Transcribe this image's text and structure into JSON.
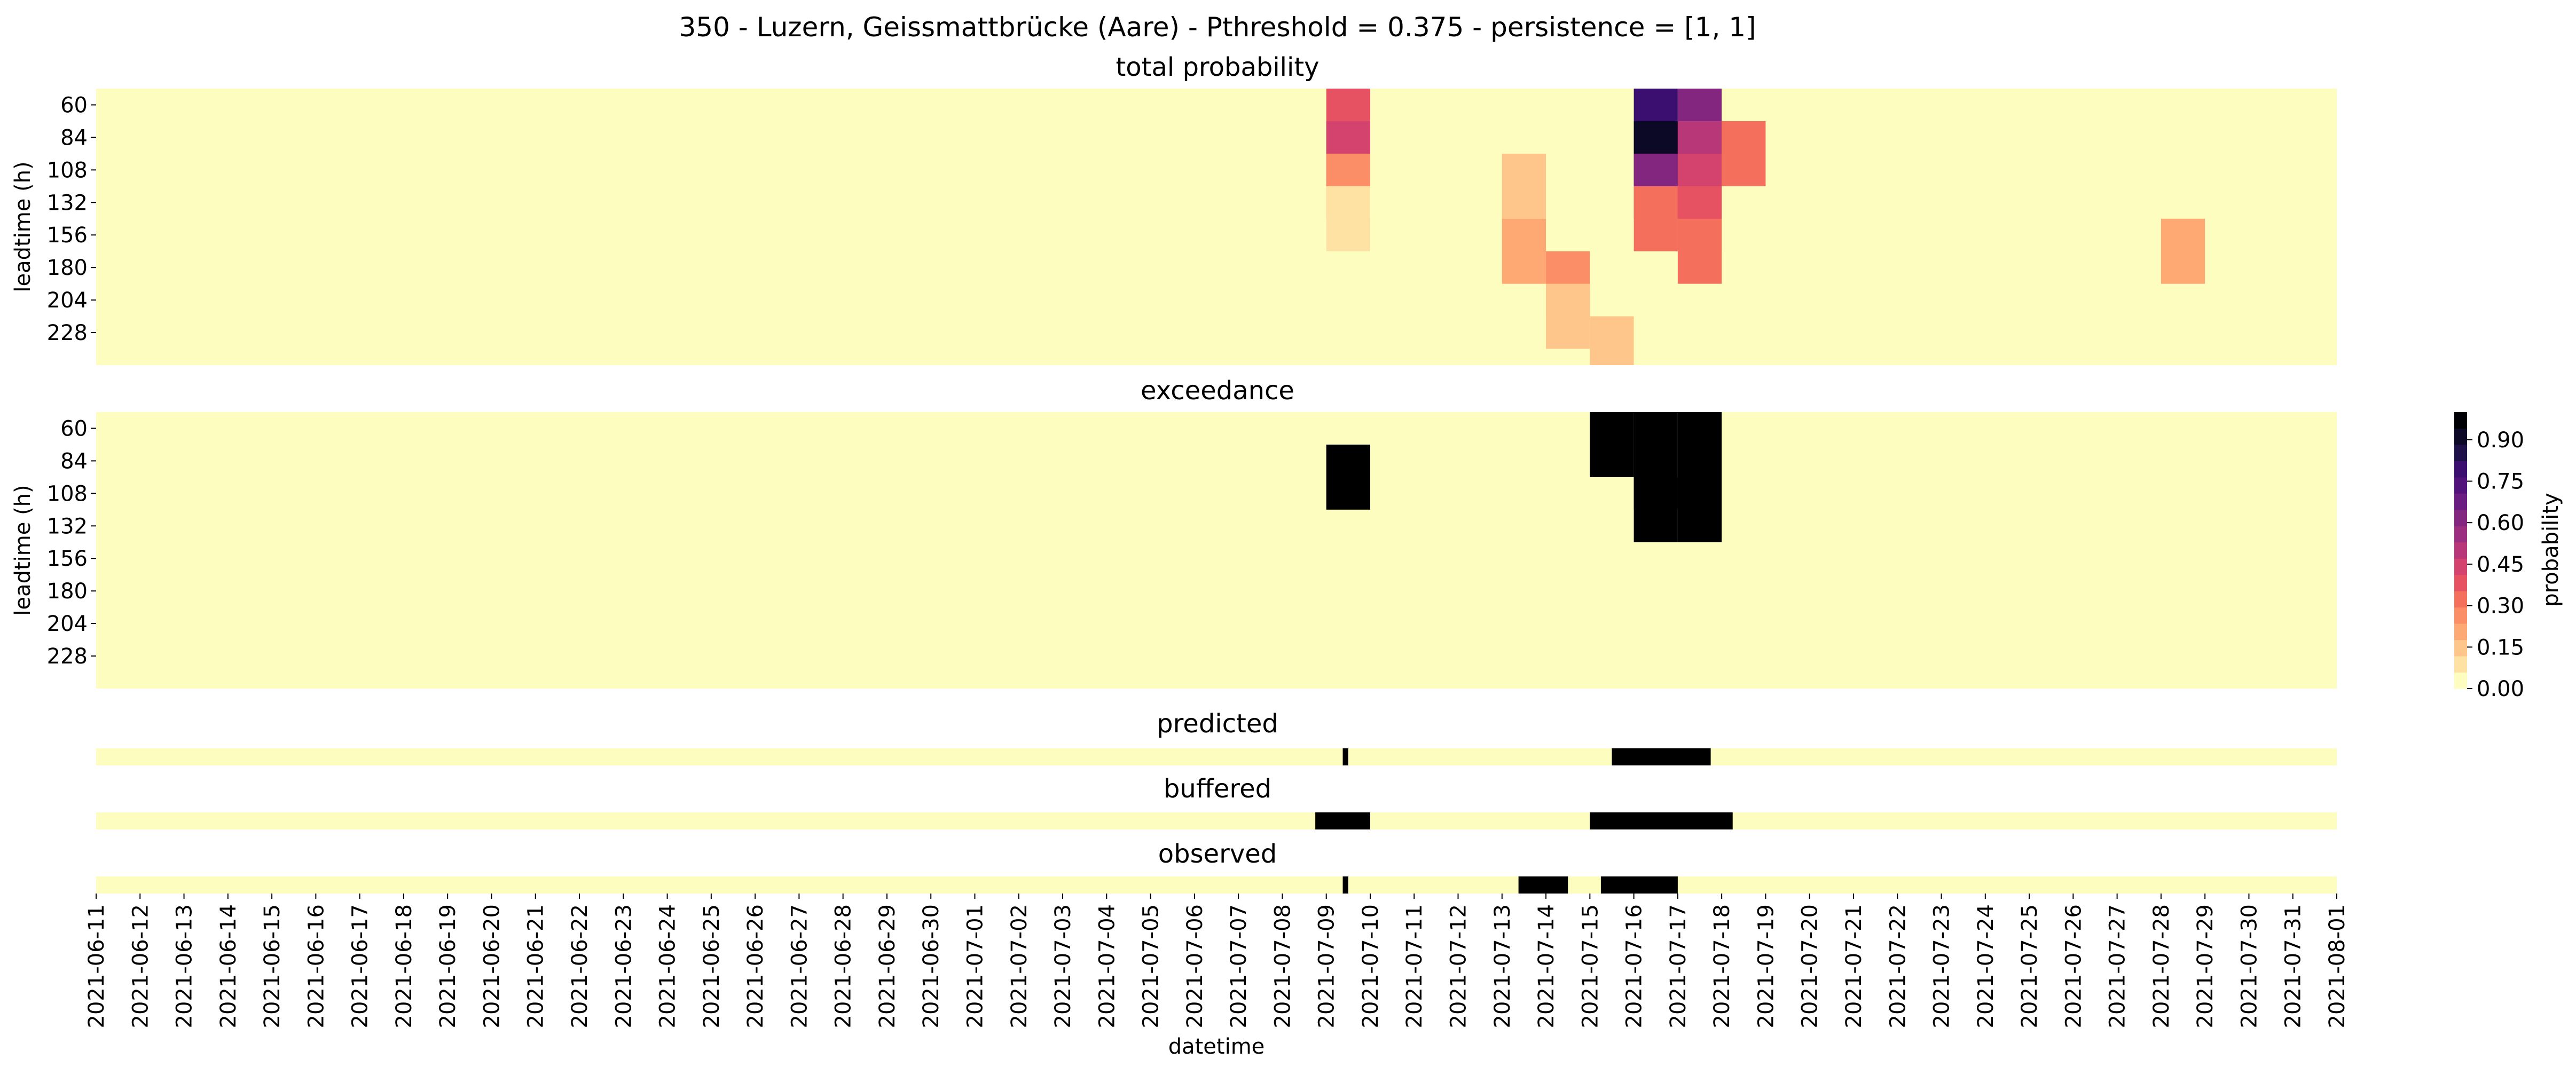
{
  "chart_data": {
    "type": "heatmap",
    "suptitle": "350 - Luzern, Geissmattbrücke (Aare) - Pthreshold = 0.375 - persistence = [1, 1]",
    "xlabel": "datetime",
    "x_start": "2021-06-11",
    "x_end": "2021-08-01",
    "x_tick_labels": [
      "2021-06-11",
      "2021-06-12",
      "2021-06-13",
      "2021-06-14",
      "2021-06-15",
      "2021-06-16",
      "2021-06-17",
      "2021-06-18",
      "2021-06-19",
      "2021-06-20",
      "2021-06-21",
      "2021-06-22",
      "2021-06-23",
      "2021-06-24",
      "2021-06-25",
      "2021-06-26",
      "2021-06-27",
      "2021-06-28",
      "2021-06-29",
      "2021-06-30",
      "2021-07-01",
      "2021-07-02",
      "2021-07-03",
      "2021-07-04",
      "2021-07-05",
      "2021-07-06",
      "2021-07-07",
      "2021-07-08",
      "2021-07-09",
      "2021-07-10",
      "2021-07-11",
      "2021-07-12",
      "2021-07-13",
      "2021-07-14",
      "2021-07-15",
      "2021-07-16",
      "2021-07-17",
      "2021-07-18",
      "2021-07-19",
      "2021-07-20",
      "2021-07-21",
      "2021-07-22",
      "2021-07-23",
      "2021-07-24",
      "2021-07-25",
      "2021-07-26",
      "2021-07-27",
      "2021-07-28",
      "2021-07-29",
      "2021-07-30",
      "2021-07-31",
      "2021-08-01"
    ],
    "leadtime_ylabel": "leadtime (h)",
    "leadtime_tick_labels": [
      "60",
      "84",
      "108",
      "132",
      "156",
      "180",
      "204",
      "228"
    ],
    "colorbar": {
      "label": "probability",
      "tick_labels": [
        "0.00",
        "0.15",
        "0.30",
        "0.45",
        "0.60",
        "0.75",
        "0.90"
      ],
      "levels": [
        0.0,
        0.05,
        0.1,
        0.15,
        0.2,
        0.25,
        0.3,
        0.35,
        0.4,
        0.45,
        0.5,
        0.55,
        0.6,
        0.65,
        0.7,
        0.75,
        0.8,
        0.85,
        0.9,
        0.95,
        1.0
      ],
      "colors": [
        "#fcfdbf",
        "#fde2a3",
        "#fec68a",
        "#fea973",
        "#fb8d67",
        "#f4705c",
        "#e75263",
        "#d3436e",
        "#b73779",
        "#9c2e7f",
        "#82267f",
        "#6a1c81",
        "#51127c",
        "#3b0f70",
        "#1e1048",
        "#0c0927",
        "#000004"
      ]
    },
    "panels": [
      {
        "title": "total probability",
        "kind": "probability",
        "cells": [
          {
            "day": "2021-07-09",
            "leadtime_band": [
              "60",
              "84"
            ],
            "p": 0.35
          },
          {
            "day": "2021-07-09",
            "leadtime_band": [
              "84",
              "108"
            ],
            "p": 0.4
          },
          {
            "day": "2021-07-09",
            "leadtime_band": [
              "108",
              "132"
            ],
            "p": 0.25
          },
          {
            "day": "2021-07-09",
            "leadtime_band": [
              "132",
              "156"
            ],
            "p": 0.05
          },
          {
            "day": "2021-07-13",
            "leadtime_band": [
              "108",
              "132"
            ],
            "p": 0.1
          },
          {
            "day": "2021-07-13",
            "leadtime_band": [
              "156",
              "180"
            ],
            "p": 0.15
          },
          {
            "day": "2021-07-14",
            "leadtime_band": [
              "180",
              "204"
            ],
            "p": 0.25
          },
          {
            "day": "2021-07-14",
            "leadtime_band": [
              "204",
              "228"
            ],
            "p": 0.1
          },
          {
            "day": "2021-07-15",
            "leadtime_band": [
              "228",
              "240"
            ],
            "p": 0.1
          },
          {
            "day": "2021-07-16",
            "leadtime_band": [
              "60",
              "84"
            ],
            "p": 0.75
          },
          {
            "day": "2021-07-16",
            "leadtime_band": [
              "84",
              "108"
            ],
            "p": 0.9
          },
          {
            "day": "2021-07-16",
            "leadtime_band": [
              "108",
              "132"
            ],
            "p": 0.6
          },
          {
            "day": "2021-07-16",
            "leadtime_band": [
              "132",
              "156"
            ],
            "p": 0.3
          },
          {
            "day": "2021-07-17",
            "leadtime_band": [
              "60",
              "84"
            ],
            "p": 0.6
          },
          {
            "day": "2021-07-17",
            "leadtime_band": [
              "84",
              "108"
            ],
            "p": 0.5
          },
          {
            "day": "2021-07-17",
            "leadtime_band": [
              "108",
              "132"
            ],
            "p": 0.4
          },
          {
            "day": "2021-07-17",
            "leadtime_band": [
              "132",
              "156"
            ],
            "p": 0.35
          },
          {
            "day": "2021-07-17",
            "leadtime_band": [
              "156",
              "180"
            ],
            "p": 0.3
          },
          {
            "day": "2021-07-18",
            "leadtime_band": [
              "84",
              "108"
            ],
            "p": 0.3
          },
          {
            "day": "2021-07-28",
            "leadtime_band": [
              "156",
              "180"
            ],
            "p": 0.2
          }
        ]
      },
      {
        "title": "exceedance",
        "kind": "binary",
        "cells": [
          {
            "day": "2021-07-09",
            "leadtime_band": [
              "84",
              "108"
            ],
            "value": 1
          },
          {
            "day": "2021-07-15",
            "leadtime_band": [
              "60",
              "84"
            ],
            "value": 1
          },
          {
            "day": "2021-07-16",
            "leadtime_band": [
              "60",
              "108"
            ],
            "value": 1
          },
          {
            "day": "2021-07-16",
            "leadtime_band": [
              "108",
              "132"
            ],
            "value": 1
          },
          {
            "day": "2021-07-17",
            "leadtime_band": [
              "60",
              "132"
            ],
            "value": 1
          }
        ]
      },
      {
        "title": "predicted",
        "kind": "binary",
        "intervals": [
          {
            "start": "2021-07-09 09:00",
            "end": "2021-07-09 12:00"
          },
          {
            "start": "2021-07-15 12:00",
            "end": "2021-07-17 18:00"
          }
        ]
      },
      {
        "title": "buffered",
        "kind": "binary",
        "intervals": [
          {
            "start": "2021-07-08 18:00",
            "end": "2021-07-10 00:00"
          },
          {
            "start": "2021-07-15 00:00",
            "end": "2021-07-18 06:00"
          }
        ]
      },
      {
        "title": "observed",
        "kind": "binary",
        "intervals": [
          {
            "start": "2021-07-09 09:00",
            "end": "2021-07-09 12:00"
          },
          {
            "start": "2021-07-13 09:00",
            "end": "2021-07-14 12:00"
          },
          {
            "start": "2021-07-15 06:00",
            "end": "2021-07-17 00:00"
          }
        ]
      }
    ]
  }
}
